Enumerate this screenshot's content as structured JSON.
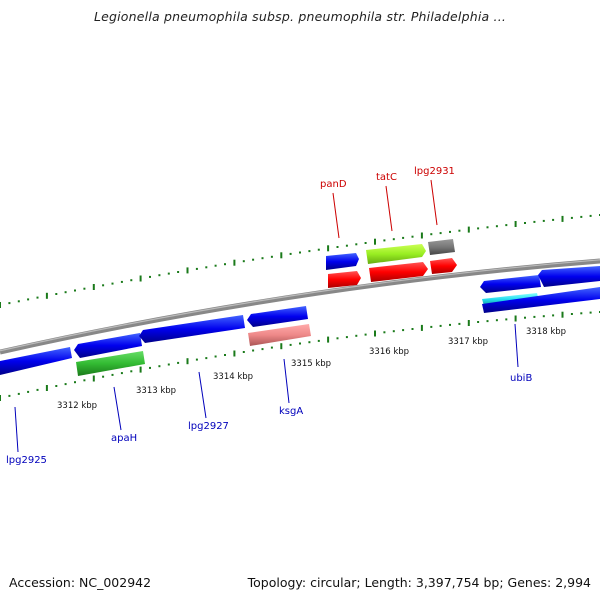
{
  "title": "Legionella pneumophila subsp. pneumophila str. Philadelphia ...",
  "footer": {
    "accession": "Accession: NC_002942",
    "summary": "Topology: circular; Length: 3,397,754 bp; Genes: 2,994"
  },
  "colors": {
    "backbone": "#888888",
    "ticks": "#1a7a1a",
    "forward_label": "#cc0000",
    "reverse_label": "#0000bb"
  },
  "genes": [
    {
      "name": "lpg2925",
      "strand": "reverse",
      "label_color": "#0000bb",
      "color": "#0000ff"
    },
    {
      "name": "apaH",
      "strand": "reverse",
      "label_color": "#0000bb",
      "color": "#33bb33"
    },
    {
      "name": "lpg2927",
      "strand": "reverse",
      "label_color": "#0000bb",
      "color": "#0000ff"
    },
    {
      "name": "ksgA",
      "strand": "reverse",
      "label_color": "#0000bb",
      "color": "#ee8888"
    },
    {
      "name": "panD",
      "strand": "forward",
      "label_color": "#cc0000",
      "color": "#ff0000"
    },
    {
      "name": "tatC",
      "strand": "forward",
      "label_color": "#cc0000",
      "color": "#99ee22"
    },
    {
      "name": "lpg2931",
      "strand": "forward",
      "label_color": "#cc0000",
      "color": "#777777"
    },
    {
      "name": "ubiB",
      "strand": "reverse",
      "label_color": "#0000bb",
      "color": "#22ddee"
    }
  ],
  "scale_labels": [
    "3312 kbp",
    "3313 kbp",
    "3314 kbp",
    "3315 kbp",
    "3316 kbp",
    "3317 kbp",
    "3318 kbp"
  ]
}
